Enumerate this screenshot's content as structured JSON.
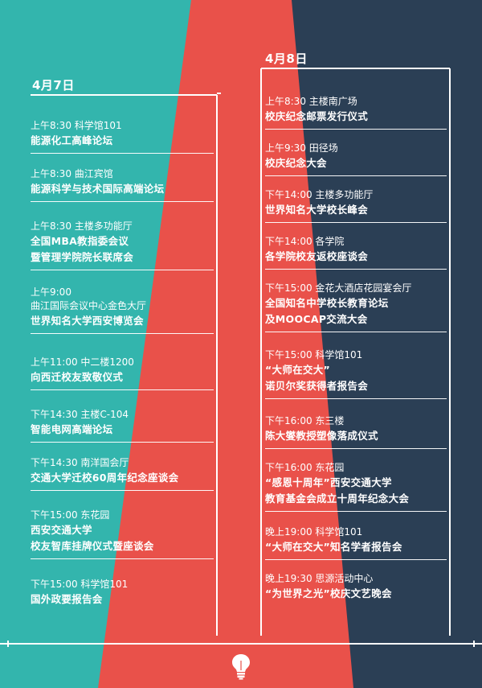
{
  "days": [
    {
      "label": "4月7日",
      "events": [
        {
          "meta": "上午8:30  科学馆101",
          "lines": [
            "能源化工高峰论坛"
          ]
        },
        {
          "meta": "上午8:30   曲江宾馆",
          "lines": [
            "能源科学与技术国际高端论坛"
          ]
        },
        {
          "meta": "上午8:30  主楼多功能厅",
          "lines": [
            "全国MBA教指委会议",
            "暨管理学院院长联席会"
          ]
        },
        {
          "meta": "上午9:00",
          "meta2": "曲江国际会议中心金色大厅",
          "lines": [
            "世界知名大学西安博览会"
          ]
        },
        {
          "meta": "上午11:00  中二楼1200",
          "lines": [
            "向西迁校友致敬仪式"
          ]
        },
        {
          "meta": "下午14:30   主楼C-104",
          "lines": [
            "智能电网高端论坛"
          ]
        },
        {
          "meta": "下午14:30  南洋国会厅",
          "lines": [
            "交通大学迁校60周年纪念座谈会"
          ]
        },
        {
          "meta": "下午15:00  东花园",
          "lines": [
            "西安交通大学",
            "校友智库挂牌仪式暨座谈会"
          ]
        },
        {
          "meta": "下午15:00  科学馆101",
          "lines": [
            "国外政要报告会"
          ]
        }
      ]
    },
    {
      "label": "4月8日",
      "events": [
        {
          "meta": "上午8:30  主楼南广场",
          "lines": [
            "校庆纪念邮票发行仪式"
          ]
        },
        {
          "meta": "上午9:30  田径场",
          "lines": [
            "校庆纪念大会"
          ]
        },
        {
          "meta": "下午14:00  主楼多功能厅",
          "lines": [
            "世界知名大学校长峰会"
          ]
        },
        {
          "meta": "下午14:00  各学院",
          "lines": [
            "各学院校友返校座谈会"
          ]
        },
        {
          "meta": "下午15:00  金花大酒店花园宴会厅",
          "lines": [
            "全国知名中学校长教育论坛",
            "及MOOCAP交流大会"
          ]
        },
        {
          "meta": "下午15:00  科学馆101",
          "lines": [
            "“大师在交大”",
            "诺贝尔奖获得者报告会"
          ]
        },
        {
          "meta": "下午16:00  东三楼",
          "lines": [
            "陈大燮教授塑像落成仪式"
          ]
        },
        {
          "meta": "下午16:00  东花园",
          "lines": [
            "“感恩十周年”西安交通大学",
            "教育基金会成立十周年纪念大会"
          ]
        },
        {
          "meta": "晚上19:00  科学馆101",
          "lines": [
            "“大师在交大”知名学者报告会"
          ]
        },
        {
          "meta": "晚上19:30  思源活动中心",
          "lines": [
            "“为世界之光”校庆文艺晚会"
          ]
        }
      ]
    }
  ],
  "footer_icon": "lightbulb-icon",
  "colors": {
    "teal": "#33b5ad",
    "red": "#e9514a",
    "navy": "#2b3f55",
    "white": "#ffffff"
  }
}
